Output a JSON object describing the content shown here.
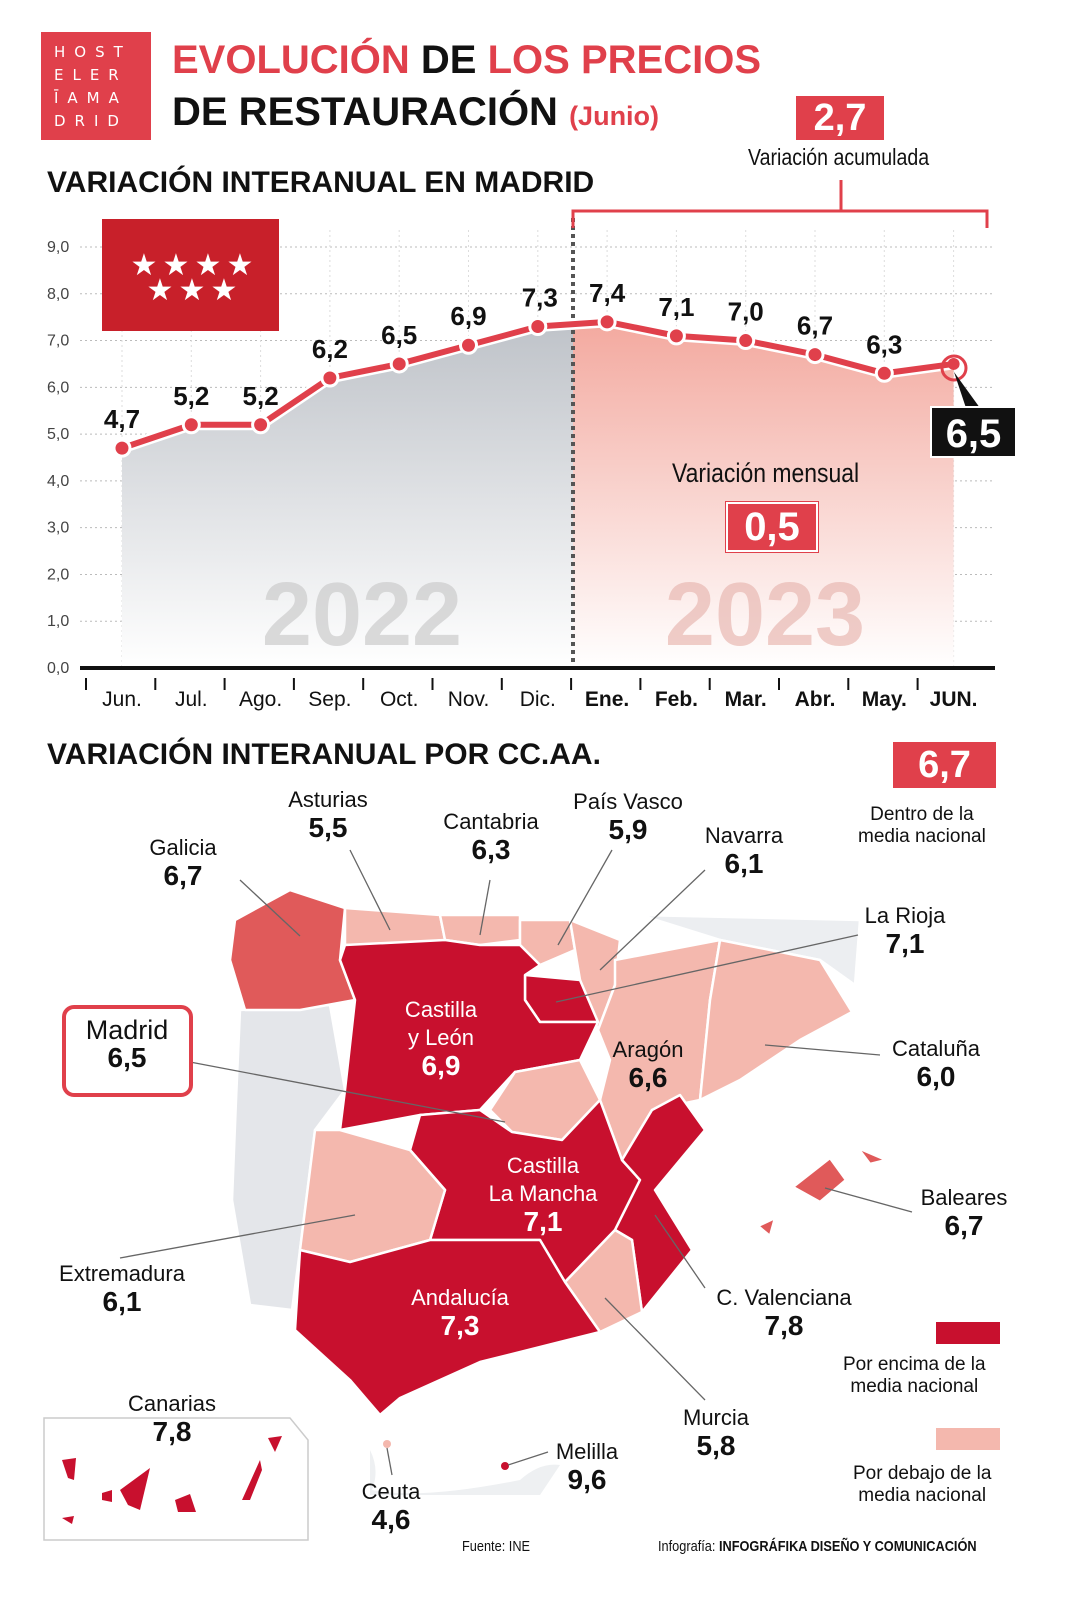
{
  "logo": {
    "lines": [
      "HOST",
      "ELER",
      "ĪAMA",
      "DRID"
    ]
  },
  "title": {
    "line1_a": "EVOLUCIÓN",
    "line1_b": "DE",
    "line1_c": "LOS PRECIOS",
    "line2": "DE RESTAURACIÓN",
    "month": "(Junio)"
  },
  "accumulated": {
    "value": "2,7",
    "label": "Variación acumulada"
  },
  "monthly": {
    "value": "0,5",
    "label": "Variación mensual"
  },
  "current": {
    "value": "6,5"
  },
  "colors": {
    "accent": "#e0404b",
    "above": "#c8102e",
    "below": "#f4b8ae",
    "galicia": "#e05a5a",
    "madrid_flag": "#c8202a"
  },
  "chart_data": {
    "type": "line",
    "title": "VARIACIÓN INTERANUAL EN MADRID",
    "categories": [
      "Jun.",
      "Jul.",
      "Ago.",
      "Sep.",
      "Oct.",
      "Nov.",
      "Dic.",
      "Ene.",
      "Feb.",
      "Mar.",
      "Abr.",
      "May.",
      "JUN."
    ],
    "values": [
      4.7,
      5.2,
      5.2,
      6.2,
      6.5,
      6.9,
      7.3,
      7.4,
      7.1,
      7.0,
      6.7,
      6.3,
      6.5
    ],
    "value_labels": [
      "4,7",
      "5,2",
      "5,2",
      "6,2",
      "6,5",
      "6,9",
      "7,3",
      "7,4",
      "7,1",
      "7,0",
      "6,7",
      "6,3",
      "6,5"
    ],
    "yticks": [
      "0,0",
      "1,0",
      "2,0",
      "3,0",
      "4,0",
      "5,0",
      "6,0",
      "7,0",
      "8,0",
      "9,0"
    ],
    "ylim": [
      0,
      9
    ],
    "grid": true,
    "year_labels": [
      "2022",
      "2023"
    ]
  },
  "map": {
    "title": "VARIACIÓN INTERANUAL POR CC.AA.",
    "national": {
      "value": "6,7",
      "label1": "Dentro de la",
      "label2": "media nacional"
    },
    "legend": [
      {
        "label1": "Por encima de la",
        "label2": "media nacional",
        "color": "#c8102e"
      },
      {
        "label1": "Por debajo de la",
        "label2": "media nacional",
        "color": "#f4b8ae"
      }
    ],
    "regions": [
      {
        "name": "Galicia",
        "value": "6,7"
      },
      {
        "name": "Asturias",
        "value": "5,5"
      },
      {
        "name": "Cantabria",
        "value": "6,3"
      },
      {
        "name": "País Vasco",
        "value": "5,9"
      },
      {
        "name": "Navarra",
        "value": "6,1"
      },
      {
        "name": "La Rioja",
        "value": "7,1"
      },
      {
        "name": "Castilla",
        "name2": "y León",
        "value": "6,9"
      },
      {
        "name": "Madrid",
        "value": "6,5"
      },
      {
        "name": "Aragón",
        "value": "6,6"
      },
      {
        "name": "Cataluña",
        "value": "6,0"
      },
      {
        "name": "Castilla",
        "name2": "La Mancha",
        "value": "7,1"
      },
      {
        "name": "Baleares",
        "value": "6,7"
      },
      {
        "name": "Extremadura",
        "value": "6,1"
      },
      {
        "name": "C. Valenciana",
        "value": "7,8"
      },
      {
        "name": "Andalucía",
        "value": "7,3"
      },
      {
        "name": "Murcia",
        "value": "5,8"
      },
      {
        "name": "Canarias",
        "value": "7,8"
      },
      {
        "name": "Ceuta",
        "value": "4,6"
      },
      {
        "name": "Melilla",
        "value": "9,6"
      }
    ]
  },
  "footer": {
    "source": "Fuente: INE",
    "credit_prefix": "Infografía:",
    "credit": "INFOGRÁFIKA DISEÑO Y COMUNICACIÓN"
  }
}
